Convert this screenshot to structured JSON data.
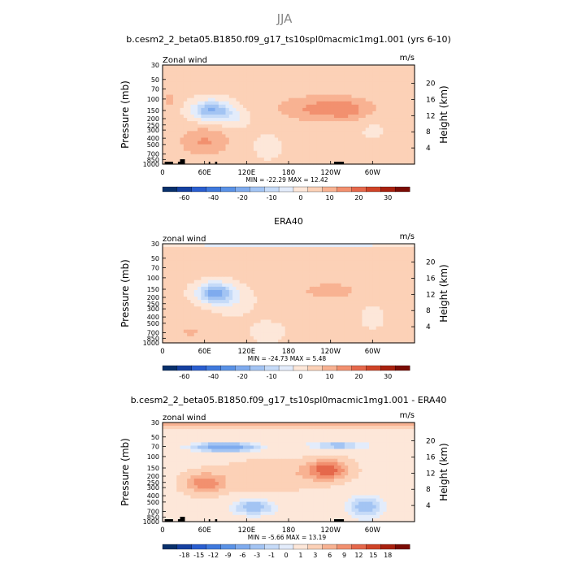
{
  "figure_title": "JJA",
  "chart_data": [
    {
      "type": "heatmap",
      "title": "b.cesm2_2_beta05.B1850.f09_g17_ts10spl0macmic1mg1.001 (yrs 6-10)",
      "left_label": "Zonal wind",
      "right_label": "m/s",
      "ylabel": "Pressure (mb)",
      "y2label": "Height (km)",
      "xticks": [
        "0",
        "60E",
        "120E",
        "180",
        "120W",
        "60W"
      ],
      "yticks": [
        "30",
        "50",
        "70",
        "100",
        "150",
        "200",
        "250",
        "300",
        "400",
        "500",
        "700",
        "850",
        "1000"
      ],
      "y2ticks": [
        "20",
        "16",
        "12",
        "8",
        "4"
      ],
      "min_max_text": "MIN = -22.29   MAX = 12.42",
      "colorbar_labels": [
        "-60",
        "-40",
        "-20",
        "-10",
        "0",
        "10",
        "20",
        "30"
      ],
      "field": {
        "background": 1.5,
        "blobs": [
          {
            "lon": 70,
            "p": 150,
            "sl": 28,
            "sp": 0.35,
            "amp": -22
          },
          {
            "lon": 100,
            "p": 200,
            "sl": 22,
            "sp": 0.35,
            "amp": -6
          },
          {
            "lon": 235,
            "p": 140,
            "sl": 65,
            "sp": 0.45,
            "amp": 11
          },
          {
            "lon": 265,
            "p": 150,
            "sl": 22,
            "sp": 0.3,
            "amp": 4
          },
          {
            "lon": 60,
            "p": 450,
            "sl": 35,
            "sp": 0.5,
            "amp": 9
          },
          {
            "lon": 150,
            "p": 550,
            "sl": 20,
            "sp": 0.45,
            "amp": -4
          },
          {
            "lon": 300,
            "p": 300,
            "sl": 18,
            "sp": 0.4,
            "amp": -3
          },
          {
            "lon": 10,
            "p": 100,
            "sl": 12,
            "sp": 0.3,
            "amp": 5
          }
        ]
      },
      "levels": [
        -70,
        -60,
        -50,
        -40,
        -30,
        -20,
        -15,
        -10,
        -5,
        0,
        5,
        10,
        15,
        20,
        25,
        30
      ],
      "colors": [
        "#08306b",
        "#1540a0",
        "#2a5ecf",
        "#3f79dd",
        "#5a92e6",
        "#7fabee",
        "#a3c4f3",
        "#c6dbf8",
        "#e3ecfb",
        "#fde7d9",
        "#fcd1b7",
        "#f8b292",
        "#f2906f",
        "#e5684b",
        "#cf4327",
        "#a8210f",
        "#7a0b04"
      ],
      "topography": true
    },
    {
      "type": "heatmap",
      "title": "ERA40",
      "left_label": "zonal wind",
      "right_label": "m/s",
      "ylabel": "Pressure (mb)",
      "y2label": "Height (km)",
      "xticks": [
        "0",
        "60E",
        "120E",
        "180",
        "120W",
        "60W"
      ],
      "yticks": [
        "30",
        "50",
        "70",
        "100",
        "150",
        "200",
        "250",
        "300",
        "400",
        "500",
        "700",
        "850",
        "1000"
      ],
      "y2ticks": [
        "20",
        "16",
        "12",
        "8",
        "4"
      ],
      "min_max_text": "MIN = -24.73   MAX =   5.48",
      "colorbar_labels": [
        "-60",
        "-40",
        "-20",
        "-10",
        "0",
        "10",
        "20",
        "30"
      ],
      "field": {
        "background": 1.5,
        "blobs": [
          {
            "lon": 75,
            "p": 170,
            "sl": 26,
            "sp": 0.35,
            "amp": -24
          },
          {
            "lon": 100,
            "p": 230,
            "sl": 30,
            "sp": 0.45,
            "amp": -5
          },
          {
            "lon": 180,
            "p": 30,
            "sl": 400,
            "sp": 0.12,
            "amp": -9
          },
          {
            "lon": 240,
            "p": 160,
            "sl": 55,
            "sp": 0.4,
            "amp": 5
          },
          {
            "lon": 40,
            "p": 700,
            "sl": 25,
            "sp": 0.3,
            "amp": 4
          },
          {
            "lon": 300,
            "p": 400,
            "sl": 20,
            "sp": 0.5,
            "amp": -3
          },
          {
            "lon": 150,
            "p": 700,
            "sl": 30,
            "sp": 0.5,
            "amp": -3
          }
        ]
      },
      "levels": [
        -70,
        -60,
        -50,
        -40,
        -30,
        -20,
        -15,
        -10,
        -5,
        0,
        5,
        10,
        15,
        20,
        25,
        30
      ],
      "colors": [
        "#08306b",
        "#1540a0",
        "#2a5ecf",
        "#3f79dd",
        "#5a92e6",
        "#7fabee",
        "#a3c4f3",
        "#c6dbf8",
        "#e3ecfb",
        "#fde7d9",
        "#fcd1b7",
        "#f8b292",
        "#f2906f",
        "#e5684b",
        "#cf4327",
        "#a8210f",
        "#7a0b04"
      ],
      "topography": false
    },
    {
      "type": "heatmap",
      "title": "b.cesm2_2_beta05.B1850.f09_g17_ts10spl0macmic1mg1.001 - ERA40",
      "left_label": "zonal wind",
      "right_label": "m/s",
      "ylabel": "Pressure (mb)",
      "y2label": "Height (km)",
      "xticks": [
        "0",
        "60E",
        "120E",
        "180",
        "120W",
        "60W"
      ],
      "yticks": [
        "30",
        "50",
        "70",
        "100",
        "150",
        "200",
        "250",
        "300",
        "400",
        "500",
        "700",
        "850",
        "1000"
      ],
      "y2ticks": [
        "20",
        "16",
        "12",
        "8",
        "4"
      ],
      "min_max_text": "MIN =  -5.66   MAX =  13.19",
      "colorbar_labels": [
        "-18",
        "-15",
        "-12",
        "-9",
        "-6",
        "-3",
        "-1",
        "0",
        "1",
        "3",
        "6",
        "9",
        "12",
        "15",
        "18"
      ],
      "field": {
        "background": 2,
        "blobs": [
          {
            "lon": 180,
            "p": 32,
            "sl": 400,
            "sp": 0.12,
            "amp": 7
          },
          {
            "lon": 90,
            "p": 72,
            "sl": 45,
            "sp": 0.15,
            "amp": -7
          },
          {
            "lon": 250,
            "p": 68,
            "sl": 40,
            "sp": 0.12,
            "amp": -4
          },
          {
            "lon": 60,
            "p": 260,
            "sl": 28,
            "sp": 0.35,
            "amp": 9
          },
          {
            "lon": 235,
            "p": 160,
            "sl": 30,
            "sp": 0.35,
            "amp": 12
          },
          {
            "lon": 150,
            "p": 200,
            "sl": 70,
            "sp": 0.5,
            "amp": 4
          },
          {
            "lon": 130,
            "p": 600,
            "sl": 30,
            "sp": 0.3,
            "amp": -4
          },
          {
            "lon": 290,
            "p": 600,
            "sl": 25,
            "sp": 0.4,
            "amp": -4
          }
        ]
      },
      "levels": [
        -18,
        -15,
        -12,
        -9,
        -6,
        -3,
        -1,
        0,
        1,
        3,
        6,
        9,
        12,
        15,
        18
      ],
      "colors": [
        "#08306b",
        "#1540a0",
        "#2a5ecf",
        "#3f79dd",
        "#5a92e6",
        "#7fabee",
        "#a3c4f3",
        "#c6dbf8",
        "#e3ecfb",
        "#fde7d9",
        "#fcd1b7",
        "#f8b292",
        "#f2906f",
        "#e5684b",
        "#cf4327",
        "#a8210f",
        "#7a0b04"
      ],
      "topography": true
    }
  ]
}
